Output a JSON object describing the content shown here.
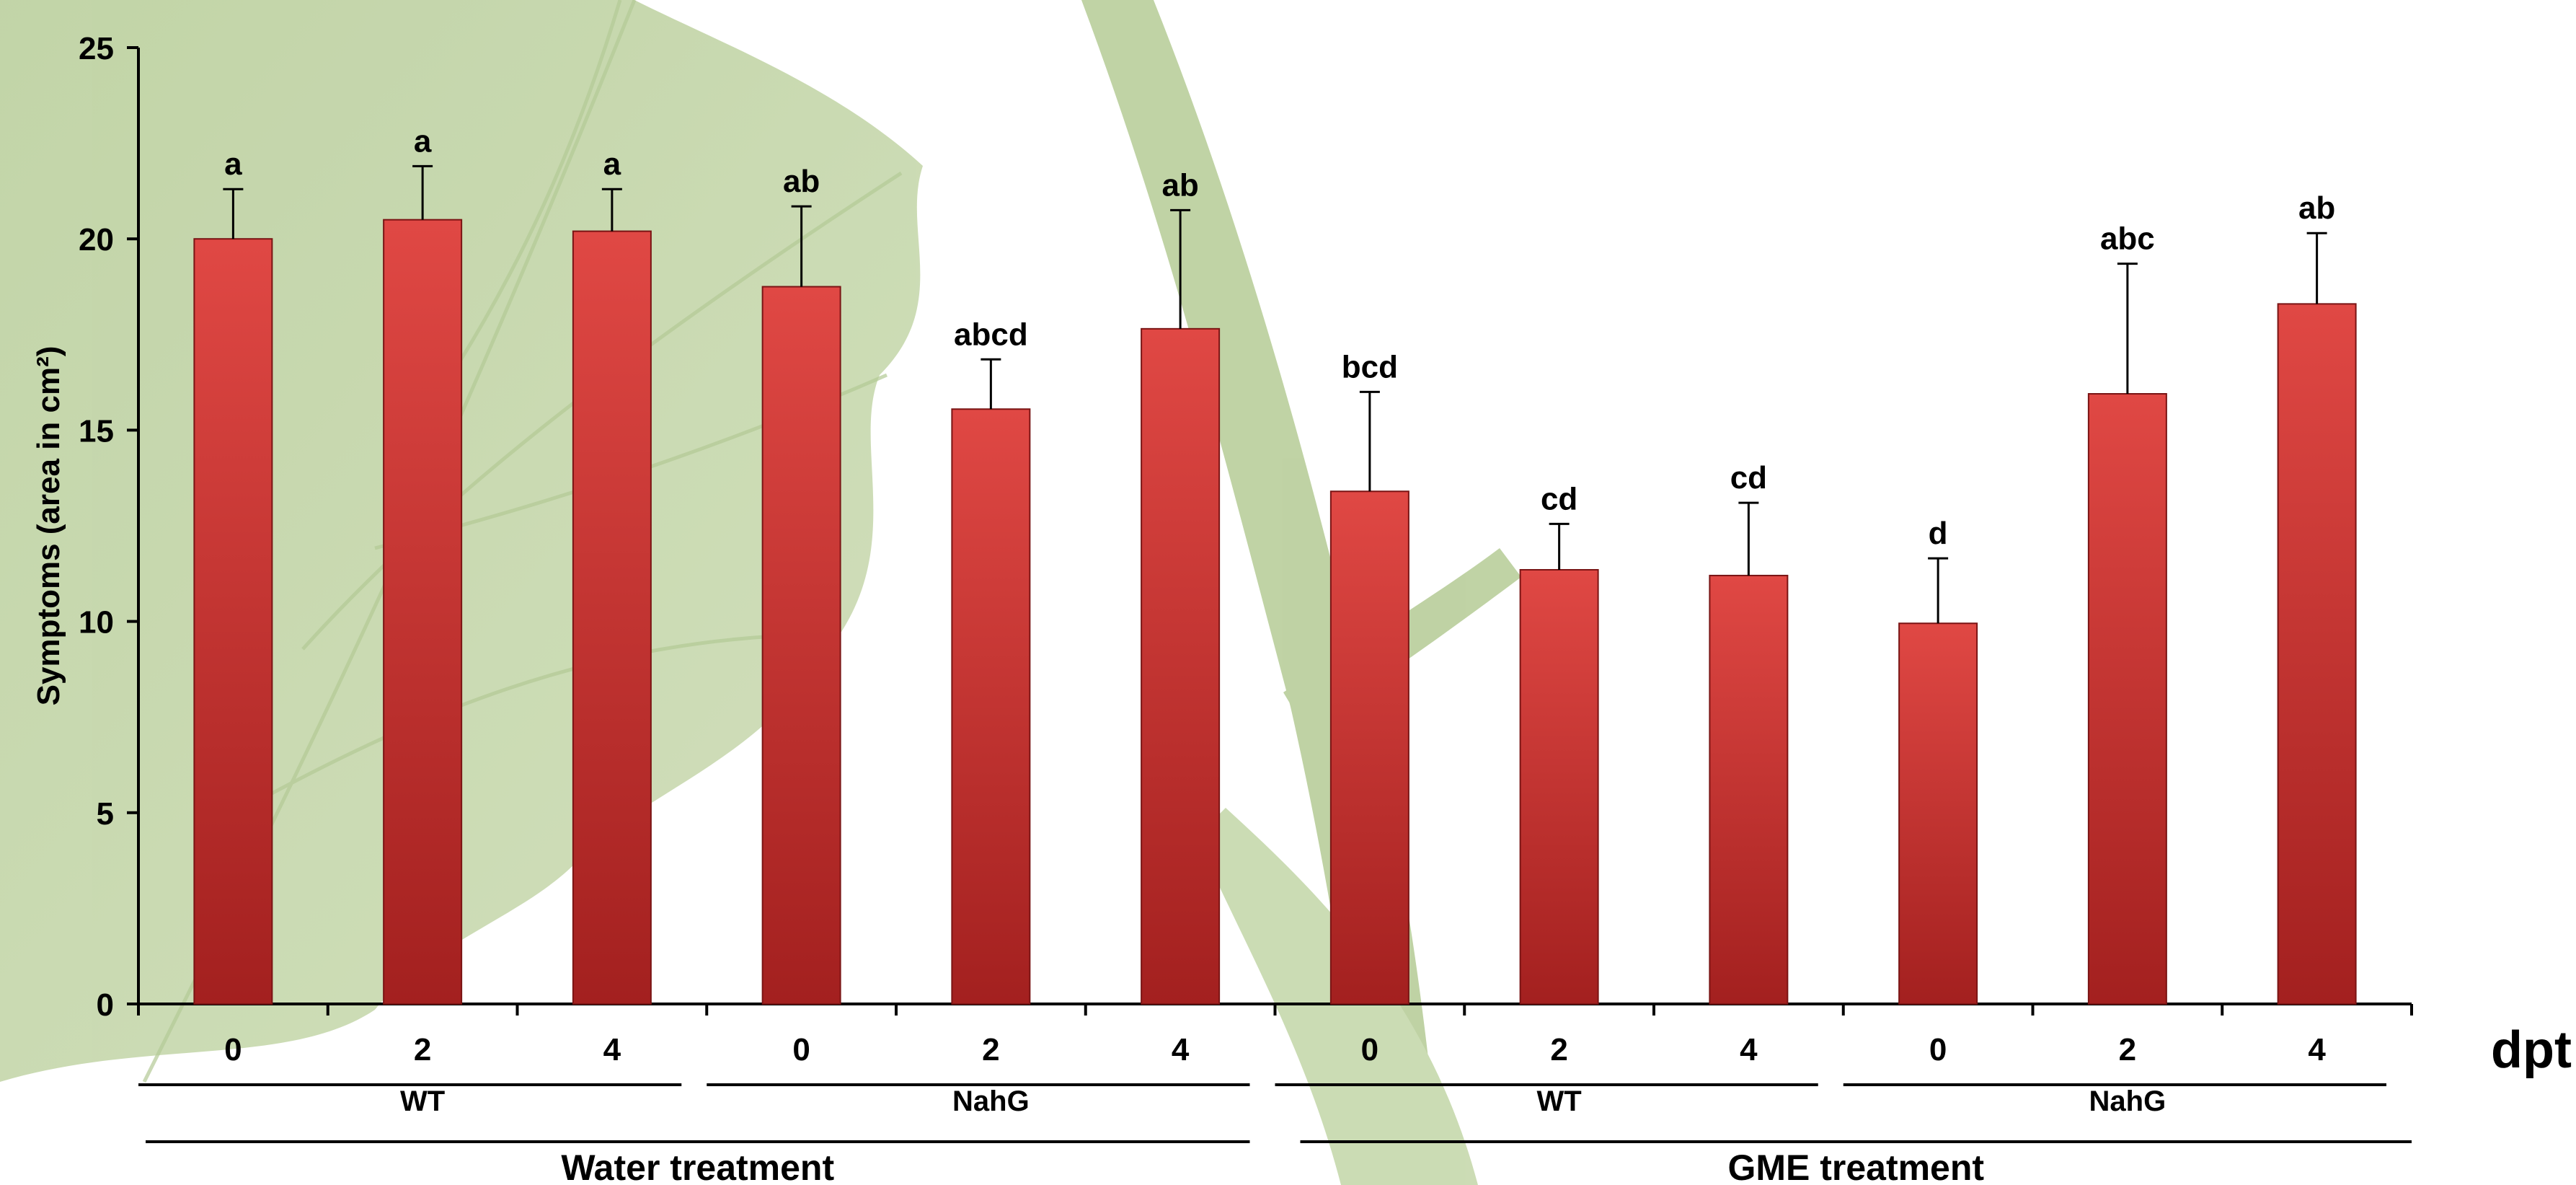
{
  "chart_data": {
    "type": "bar",
    "ylabel": "Symptoms (area in cm²)",
    "xunit": "dpt",
    "ylim": [
      0,
      25
    ],
    "yticks": [
      0,
      5,
      10,
      15,
      20,
      25
    ],
    "grid": false,
    "legend": "none",
    "categories": [
      "0",
      "2",
      "4",
      "0",
      "2",
      "4",
      "0",
      "2",
      "4",
      "0",
      "2",
      "4"
    ],
    "values": [
      20.0,
      20.5,
      20.2,
      18.75,
      15.55,
      17.65,
      13.4,
      11.35,
      11.2,
      9.95,
      15.95,
      18.3
    ],
    "errors": [
      1.3,
      1.4,
      1.1,
      2.1,
      1.3,
      3.1,
      2.6,
      1.2,
      1.9,
      1.7,
      3.4,
      1.85
    ],
    "significance": [
      "a",
      "a",
      "a",
      "ab",
      "abcd",
      "ab",
      "bcd",
      "cd",
      "cd",
      "d",
      "abc",
      "ab"
    ],
    "genotype_groups": [
      {
        "label": "WT",
        "start": 0,
        "end": 2
      },
      {
        "label": "NahG",
        "start": 3,
        "end": 5
      },
      {
        "label": "WT",
        "start": 6,
        "end": 8
      },
      {
        "label": "NahG",
        "start": 9,
        "end": 11
      }
    ],
    "treatment_groups": [
      {
        "label": "Water treatment",
        "start": 0,
        "end": 5
      },
      {
        "label": "GME treatment",
        "start": 6,
        "end": 11
      }
    ],
    "colors": {
      "bar_top": "#e04844",
      "bar_bottom": "#a3201f",
      "bar_edge": "#7a1414",
      "background_leaf": "#b9cf9c",
      "background_leaf_dark": "#9fbb7c"
    }
  }
}
